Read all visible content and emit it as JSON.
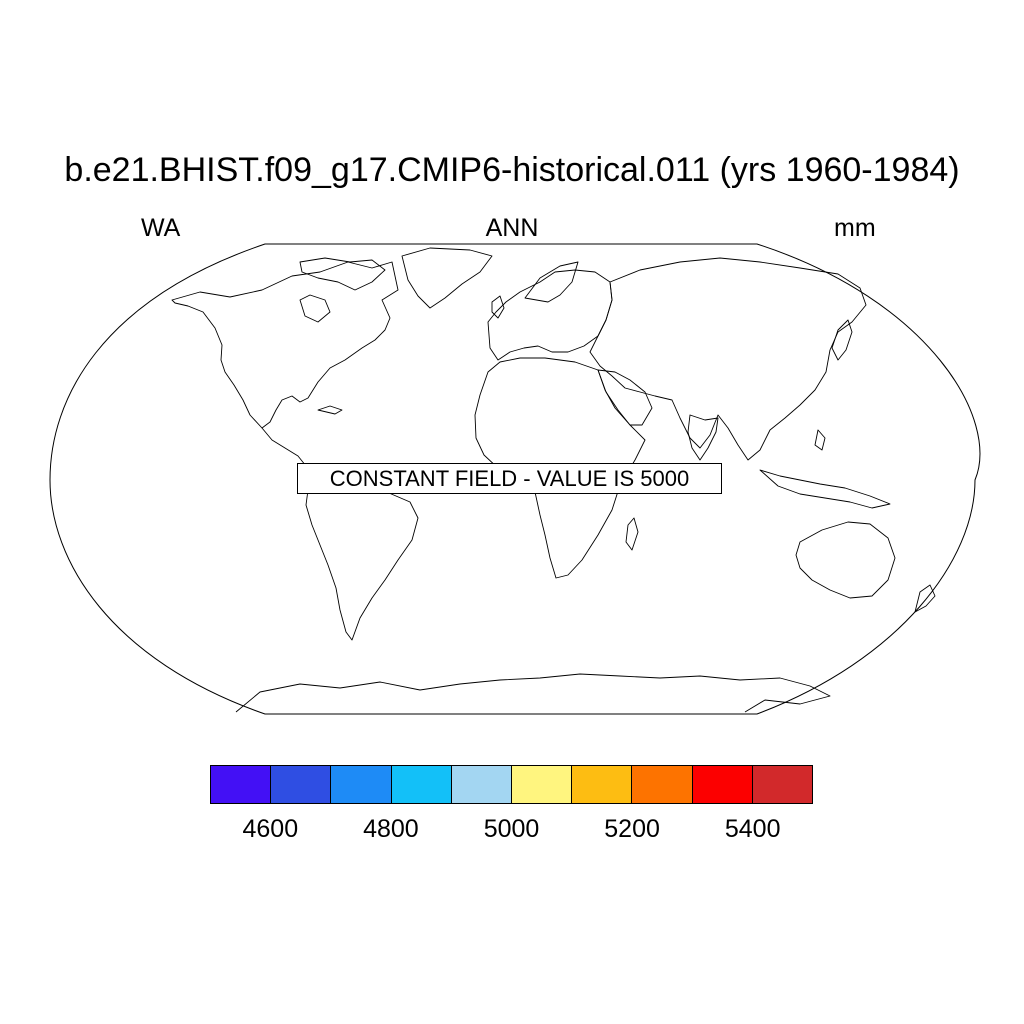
{
  "title": "b.e21.BHIST.f09_g17.CMIP6-historical.011 (yrs 1960-1984)",
  "left_string": "WA",
  "center_string": "ANN",
  "right_string": "mm",
  "notice": "CONSTANT FIELD - VALUE IS 5000",
  "map": {
    "projection": "Robinson",
    "coastline_color": "#000000",
    "fill_color": "#ffffff"
  },
  "colorbar": {
    "colors": [
      "#4310f5",
      "#2f4ee3",
      "#1e8bf6",
      "#13c0f8",
      "#a3d6f2",
      "#fff57f",
      "#fdbd12",
      "#fd7300",
      "#fc0000",
      "#d2292b"
    ],
    "labels": [
      "4600",
      "4800",
      "5000",
      "5200",
      "5400"
    ]
  }
}
